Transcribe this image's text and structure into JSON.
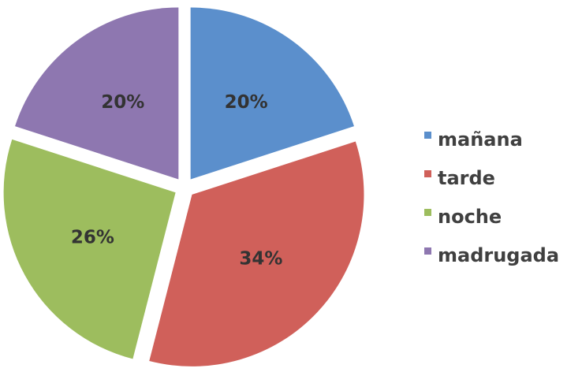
{
  "chart_data": {
    "type": "pie",
    "exploded": true,
    "start": "top, clockwise",
    "categories": [
      "mañana",
      "tarde",
      "noche",
      "madrugada"
    ],
    "values": [
      20,
      34,
      26,
      20
    ],
    "labels": [
      "20%",
      "34%",
      "26%",
      "20%"
    ],
    "colors": [
      "#5b8fcc",
      "#d0605a",
      "#9dbd5e",
      "#8e77b0"
    ],
    "legend_position": "right"
  }
}
